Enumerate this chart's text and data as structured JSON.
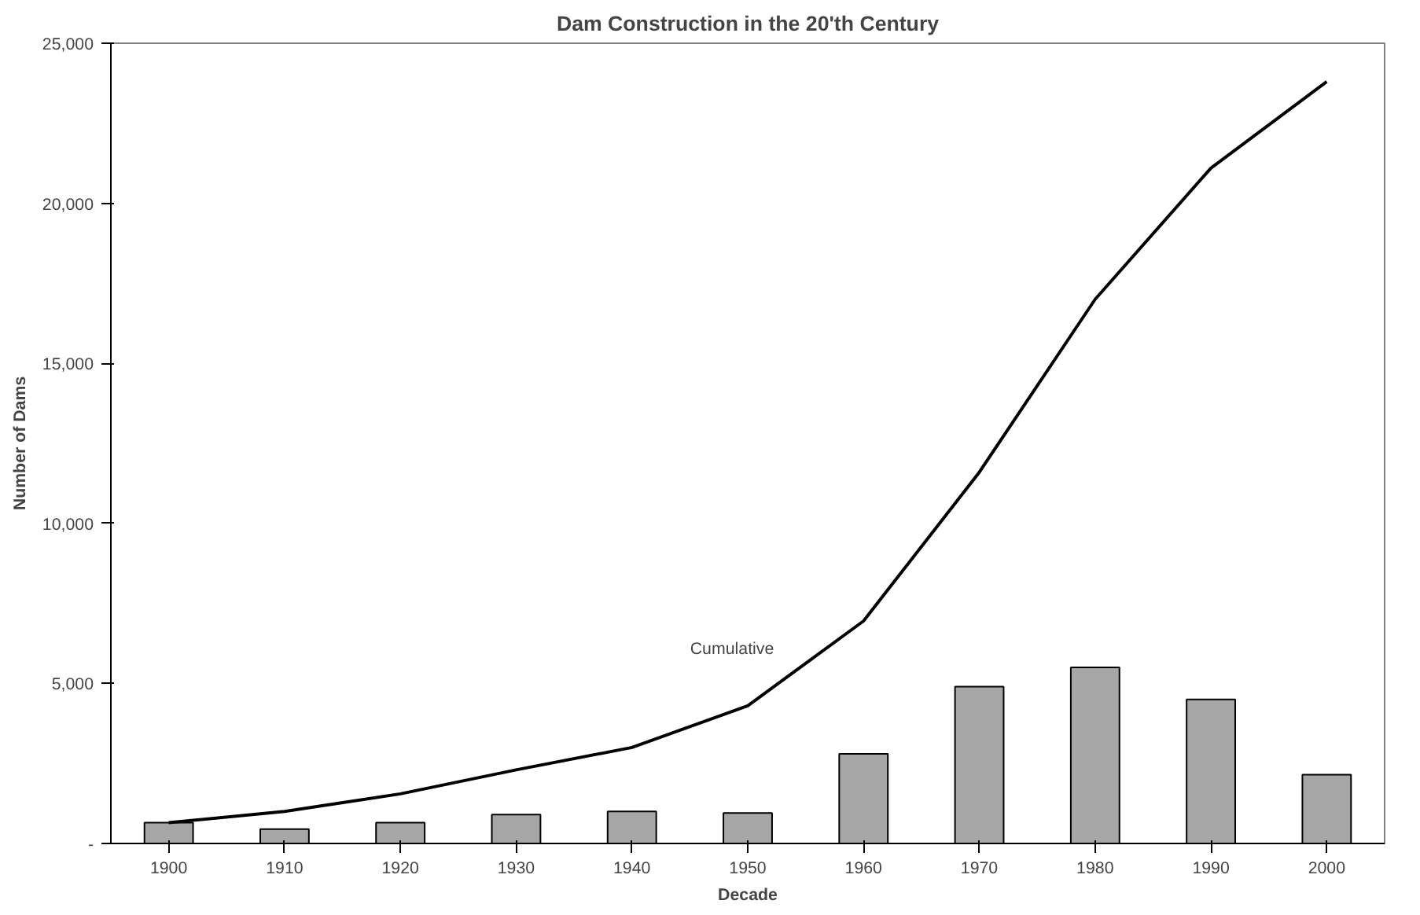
{
  "chart_data": {
    "type": "bar",
    "title": "Dam Construction in the 20'th Century",
    "xlabel": "Decade",
    "ylabel": "Number of Dams",
    "categories": [
      "1900",
      "1910",
      "1920",
      "1930",
      "1940",
      "1950",
      "1960",
      "1970",
      "1980",
      "1990",
      "2000"
    ],
    "series": [
      {
        "color": "#a6a6a6",
        "values": [
          650,
          450,
          650,
          900,
          1000,
          950,
          2800,
          4900,
          5500,
          4500,
          2150
        ]
      },
      {
        "type": "line",
        "name": "Cumulative",
        "color": "#000000",
        "values": [
          650,
          1000,
          1550,
          2300,
          3000,
          4300,
          6950,
          11600,
          17000,
          21100,
          23800
        ]
      }
    ],
    "ylim": [
      0,
      25000
    ],
    "yticks": [
      {
        "value": 0,
        "label": "-"
      },
      {
        "value": 5000,
        "label": "5,000"
      },
      {
        "value": 10000,
        "label": "10,000"
      },
      {
        "value": 15000,
        "label": "15,000"
      },
      {
        "value": 20000,
        "label": "20,000"
      },
      {
        "value": 25000,
        "label": "25,000"
      }
    ],
    "grid": false,
    "marker": "none",
    "line_style": "solid"
  }
}
